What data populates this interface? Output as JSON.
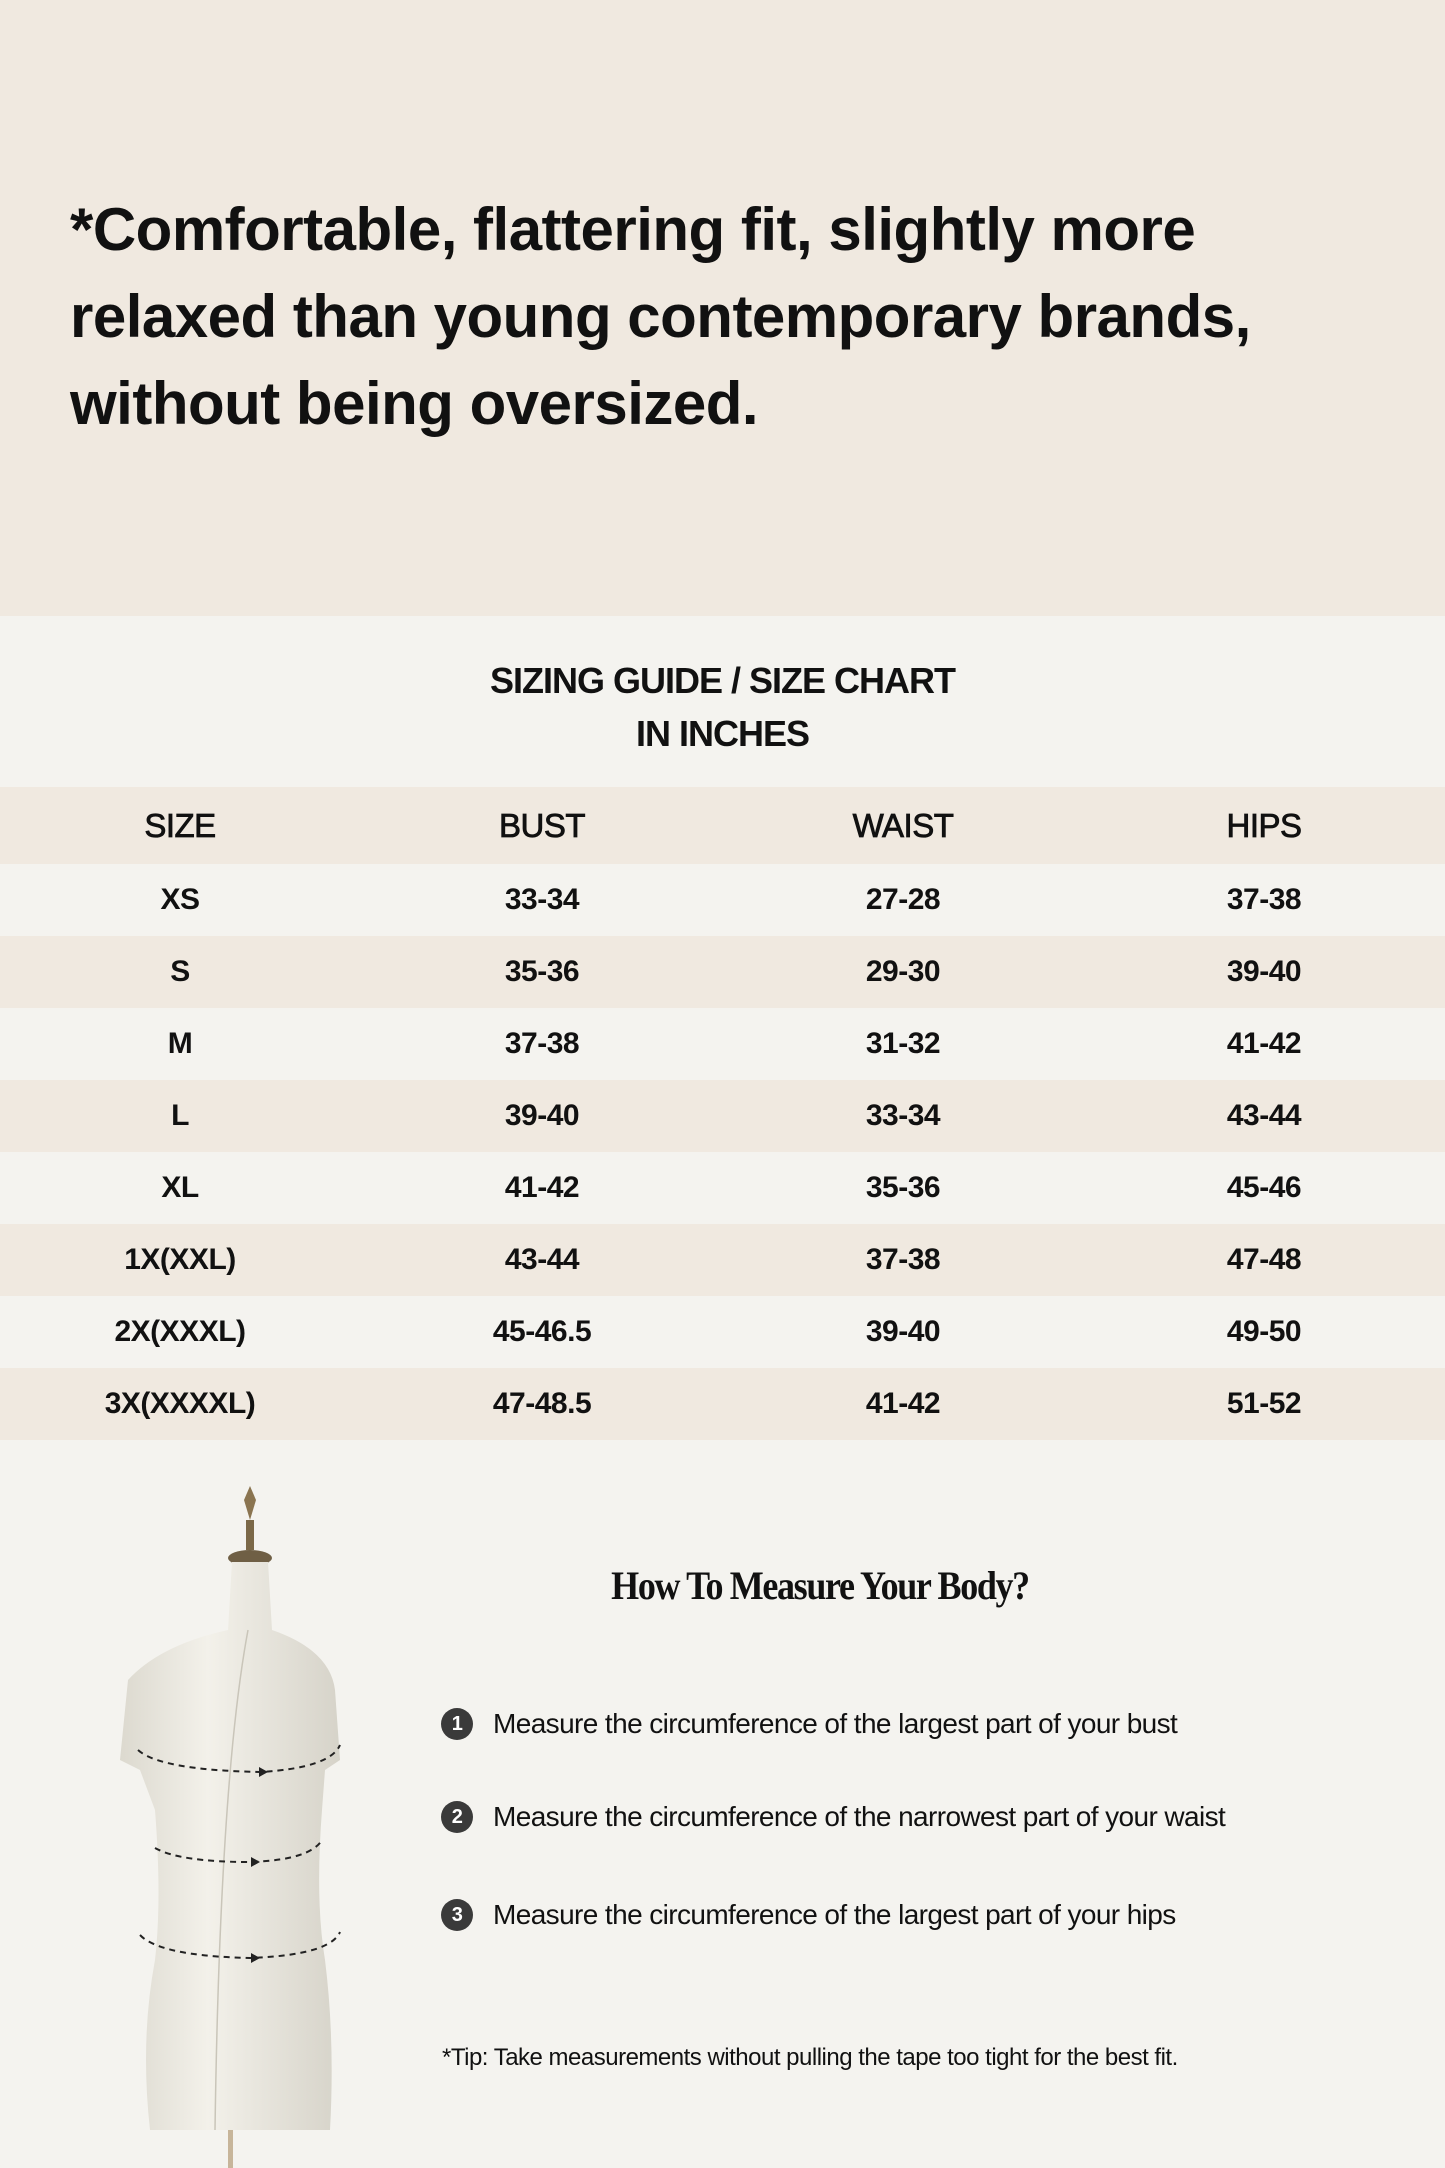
{
  "headline": {
    "lines": [
      "*Comfortable, flattering fit, slightly more",
      "relaxed than young contemporary brands,",
      "without being oversized."
    ]
  },
  "guide": {
    "title_line1": "SIZING GUIDE / SIZE CHART",
    "title_line2": "IN INCHES",
    "columns": [
      "SIZE",
      "BUST",
      "WAIST",
      "HIPS"
    ],
    "rows": [
      [
        "XS",
        "33-34",
        "27-28",
        "37-38"
      ],
      [
        "S",
        "35-36",
        "29-30",
        "39-40"
      ],
      [
        "M",
        "37-38",
        "31-32",
        "41-42"
      ],
      [
        "L",
        "39-40",
        "33-34",
        "43-44"
      ],
      [
        "XL",
        "41-42",
        "35-36",
        "45-46"
      ],
      [
        "1X(XXL)",
        "43-44",
        "37-38",
        "47-48"
      ],
      [
        "2X(XXXL)",
        "45-46.5",
        "39-40",
        "49-50"
      ],
      [
        "3X(XXXXL)",
        "47-48.5",
        "41-42",
        "51-52"
      ]
    ]
  },
  "measure": {
    "title": "How To Measure Your Body?",
    "steps": [
      {
        "num": "1",
        "text": "Measure the circumference of the largest part of your bust"
      },
      {
        "num": "2",
        "text": "Measure the circumference of the narrowest part of your waist"
      },
      {
        "num": "3",
        "text": "Measure the circumference of the largest part of your hips"
      }
    ],
    "tip": "*Tip: Take measurements without pulling the tape too tight for the best fit."
  },
  "colors": {
    "beige_band": "#f0e9e0",
    "light_band": "#f4f3ef",
    "text": "#111111"
  }
}
